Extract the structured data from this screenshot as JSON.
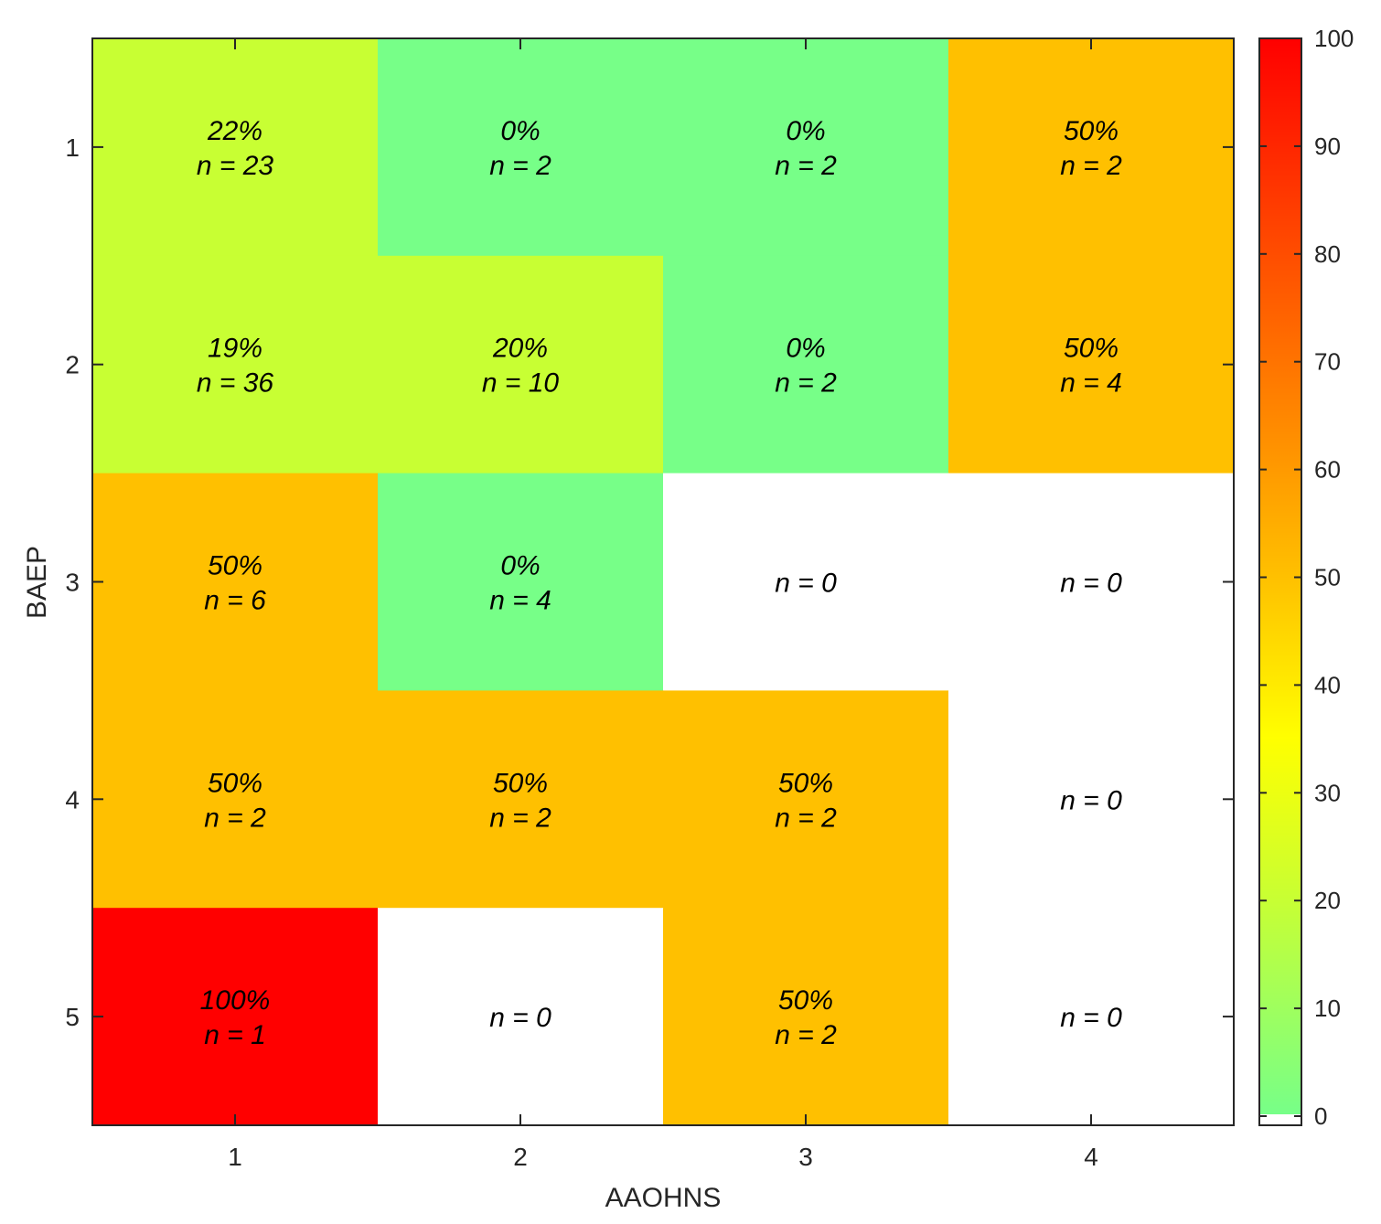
{
  "chart_data": {
    "type": "heatmap",
    "xlabel": "AAOHNS",
    "ylabel": "BAEP",
    "x_categories": [
      "1",
      "2",
      "3",
      "4"
    ],
    "y_categories": [
      "1",
      "2",
      "3",
      "4",
      "5"
    ],
    "cells": [
      [
        {
          "pct": 22,
          "pct_label": "22%",
          "n_label": "n = 23"
        },
        {
          "pct": 0,
          "pct_label": "0%",
          "n_label": "n = 2"
        },
        {
          "pct": 0,
          "pct_label": "0%",
          "n_label": "n = 2"
        },
        {
          "pct": 50,
          "pct_label": "50%",
          "n_label": "n = 2"
        }
      ],
      [
        {
          "pct": 19,
          "pct_label": "19%",
          "n_label": "n = 36"
        },
        {
          "pct": 20,
          "pct_label": "20%",
          "n_label": "n = 10"
        },
        {
          "pct": 0,
          "pct_label": "0%",
          "n_label": "n = 2"
        },
        {
          "pct": 50,
          "pct_label": "50%",
          "n_label": "n = 4"
        }
      ],
      [
        {
          "pct": 50,
          "pct_label": "50%",
          "n_label": "n = 6"
        },
        {
          "pct": 0,
          "pct_label": "0%",
          "n_label": "n = 4"
        },
        {
          "pct": null,
          "pct_label": "",
          "n_label": "n = 0"
        },
        {
          "pct": null,
          "pct_label": "",
          "n_label": "n = 0"
        }
      ],
      [
        {
          "pct": 50,
          "pct_label": "50%",
          "n_label": "n = 2"
        },
        {
          "pct": 50,
          "pct_label": "50%",
          "n_label": "n = 2"
        },
        {
          "pct": 50,
          "pct_label": "50%",
          "n_label": "n = 2"
        },
        {
          "pct": null,
          "pct_label": "",
          "n_label": "n = 0"
        }
      ],
      [
        {
          "pct": 100,
          "pct_label": "100%",
          "n_label": "n = 1"
        },
        {
          "pct": null,
          "pct_label": "",
          "n_label": "n = 0"
        },
        {
          "pct": 50,
          "pct_label": "50%",
          "n_label": "n = 2"
        },
        {
          "pct": null,
          "pct_label": "",
          "n_label": "n = 0"
        }
      ]
    ],
    "colorbar": {
      "range": [
        0,
        100
      ],
      "ticks": [
        "0",
        "10",
        "20",
        "30",
        "40",
        "50",
        "60",
        "70",
        "80",
        "90",
        "100"
      ]
    },
    "colors": {
      "zero": "#77ff88",
      "low": "#c8ff33",
      "mid": "#ffc000",
      "high": "#ff0000",
      "empty": "#ffffff"
    }
  }
}
